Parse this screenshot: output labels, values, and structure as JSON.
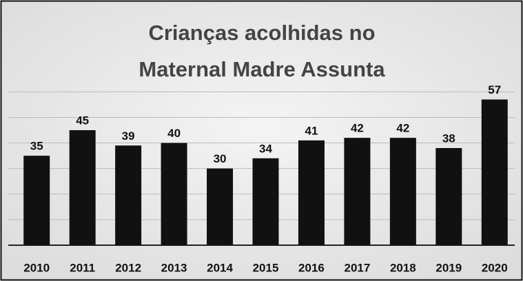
{
  "chart_data": {
    "type": "bar",
    "title": [
      "Crianças acolhidas no",
      "Maternal Madre Assunta"
    ],
    "categories": [
      "2010",
      "2011",
      "2012",
      "2013",
      "2014",
      "2015",
      "2016",
      "2017",
      "2018",
      "2019",
      "2020"
    ],
    "values": [
      35,
      45,
      39,
      40,
      30,
      34,
      41,
      42,
      42,
      38,
      57
    ],
    "color": "#111111",
    "ylim": [
      0,
      90
    ],
    "yticks": [
      0,
      10,
      20,
      30,
      40,
      50,
      60
    ],
    "grid": true
  }
}
